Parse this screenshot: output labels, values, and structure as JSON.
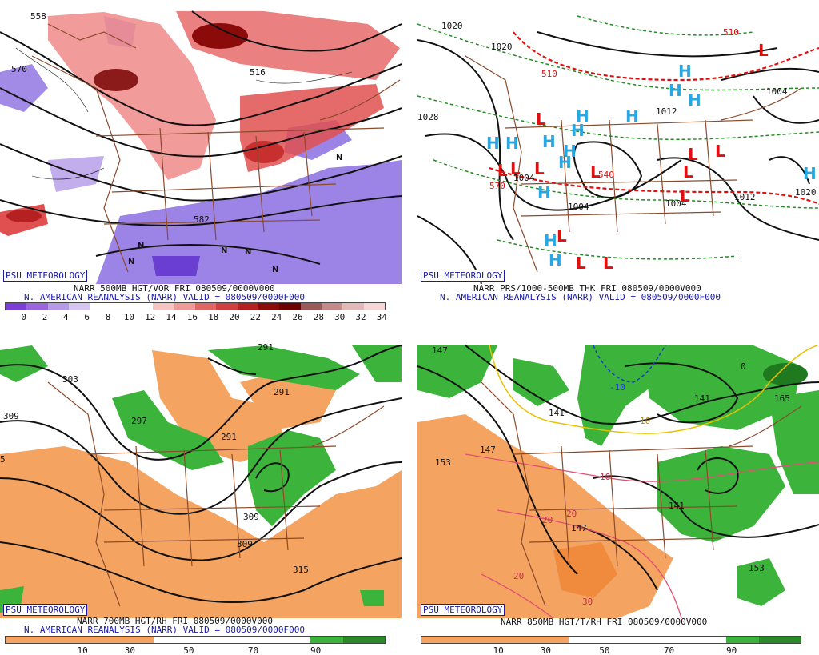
{
  "panels": [
    {
      "badge": "PSU METEOROLOGY",
      "caption_line1": "NARR 500MB HGT/VOR FRI 080509/0000V000",
      "caption_line2": "N. AMERICAN REANALYSIS (NARR) VALID = 080509/0000F000",
      "contour_labels": [
        "558",
        "570",
        "516",
        "582"
      ],
      "legend_ticks": [
        "0",
        "2",
        "4",
        "6",
        "8",
        "10",
        "12",
        "14",
        "16",
        "18",
        "20",
        "22",
        "24",
        "26",
        "28",
        "30",
        "32",
        "34"
      ],
      "legend_colors": [
        "#7b3fd6",
        "#9966e0",
        "#b59ae8",
        "#d5c6f2",
        "#ffffff",
        "#ffffff",
        "#ffffff",
        "#f7c4c4",
        "#ef9a9a",
        "#e06666",
        "#d04040",
        "#b52020",
        "#8b0a0a",
        "#6e0000",
        "#9b5a5a",
        "#c28a8a",
        "#e2b8b8",
        "#f5d5d5"
      ]
    },
    {
      "badge": "PSU METEOROLOGY",
      "caption_line1": "NARR PRS/1000-500MB THK FRI 080509/0000V000",
      "caption_line2": "N. AMERICAN REANALYSIS (NARR) VALID = 080509/0000F000",
      "contour_labels": [
        "1020",
        "1020",
        "1028",
        "1012",
        "1004",
        "1004",
        "1004",
        "1004",
        "1012",
        "1020",
        "510",
        "540",
        "570",
        "510"
      ]
    },
    {
      "badge": "PSU METEOROLOGY",
      "caption_line1": "NARR 700MB HGT/RH FRI 080509/0000V000",
      "caption_line2": "N. AMERICAN REANALYSIS (NARR) VALID = 080509/0000F000",
      "contour_labels": [
        "303",
        "309",
        "297",
        "291",
        "291",
        "291",
        "309",
        "309",
        "315",
        "5"
      ],
      "legend_ticks": [
        "10",
        "30",
        "50",
        "70",
        "90"
      ]
    },
    {
      "badge": "PSU METEOROLOGY",
      "caption_line1": "NARR 850MB HGT/T/RH FRI 080509/0000V000",
      "caption_line2": "",
      "contour_labels": [
        "147",
        "153",
        "147",
        "141",
        "141",
        "141",
        "147",
        "153",
        "0",
        "-10",
        "10",
        "10",
        "20",
        "20",
        "20",
        "30",
        "165"
      ],
      "legend_ticks": [
        "10",
        "30",
        "50",
        "70",
        "90"
      ]
    }
  ],
  "highs_lows": {
    "H": "H",
    "L": "L",
    "N": "N"
  },
  "colors": {
    "purple": "#8060d8",
    "red": "#e03c3c",
    "darkred": "#8b0a0a",
    "orange": "#f4a460",
    "green": "#3cb43c",
    "map_lines": "#8b4a2b",
    "contour": "#111111",
    "green_dash": "#228b22",
    "red_dash": "#e01010",
    "high_blue": "#2aa7e0",
    "low_red": "#e01010"
  }
}
